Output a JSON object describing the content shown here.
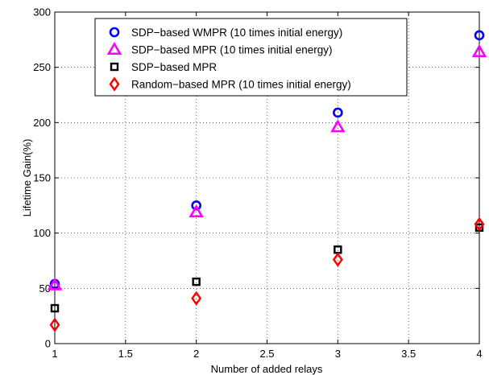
{
  "chart_data": {
    "type": "scatter",
    "title": "",
    "xlabel": "Number of added relays",
    "ylabel": "Lifetime Gain(%)",
    "xlim": [
      1,
      4
    ],
    "ylim": [
      0,
      300
    ],
    "xticks": [
      "1",
      "1.5",
      "2",
      "2.5",
      "3",
      "3.5",
      "4"
    ],
    "yticks": [
      "0",
      "50",
      "100",
      "150",
      "200",
      "250",
      "300"
    ],
    "grid": true,
    "legend_position": "top-center",
    "x": [
      1,
      2,
      3,
      4
    ],
    "series": [
      {
        "name": "SDP−based WMPR (10 times initial energy)",
        "marker": "circle",
        "color": "#0000ff",
        "values": [
          54,
          125,
          209,
          279
        ]
      },
      {
        "name": "SDP−based MPR (10 times initial energy)",
        "marker": "triangle",
        "color": "#ff00ff",
        "values": [
          53,
          119,
          196,
          264
        ]
      },
      {
        "name": "SDP−based MPR",
        "marker": "square",
        "color": "#000000",
        "values": [
          32,
          56,
          85,
          105
        ]
      },
      {
        "name": "Random−based MPR (10 times initial energy)",
        "marker": "diamond",
        "color": "#ff0000",
        "values": [
          17,
          41,
          76,
          108
        ]
      }
    ]
  }
}
